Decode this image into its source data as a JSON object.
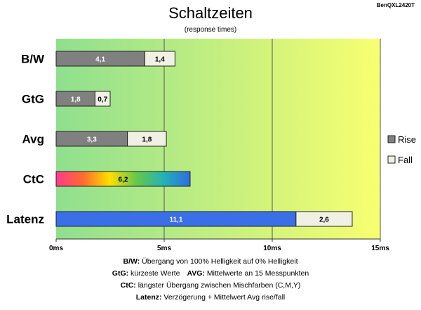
{
  "chart_data": {
    "type": "bar",
    "orientation": "horizontal",
    "stacked": true,
    "title": "Schaltzeiten",
    "subtitle": "(response times)",
    "model_label": "BenQXL2420T",
    "categories": [
      "B/W",
      "GtG",
      "Avg",
      "CtC",
      "Latenz"
    ],
    "series": [
      {
        "name": "Rise",
        "values": [
          4.1,
          1.8,
          3.3,
          null,
          11.1
        ],
        "labels": [
          "4,1",
          "1,8",
          "3,3",
          null,
          "11,1"
        ]
      },
      {
        "name": "Fall",
        "values": [
          1.4,
          0.7,
          1.8,
          null,
          2.6
        ],
        "labels": [
          "1,4",
          "0,7",
          "1,8",
          null,
          "2,6"
        ]
      },
      {
        "name": "",
        "values": [
          null,
          null,
          null,
          6.2,
          null
        ],
        "labels": [
          null,
          null,
          null,
          "6,2",
          null
        ]
      }
    ],
    "xlim": [
      0,
      15
    ],
    "xticks": [
      0,
      5,
      10,
      15
    ],
    "xtick_labels": [
      "0ms",
      "5ms",
      "10ms",
      "15ms"
    ],
    "grid": true,
    "legend_position": "right",
    "background_gradient": [
      "#8fdf8f",
      "#f8ff70"
    ],
    "colors": {
      "rise": "#808080",
      "fall": "#f0f0e4",
      "latency_rise": "#3b6fe8",
      "ctc_gradient": [
        "#ff3a8c",
        "#ff6a30",
        "#ffe000",
        "#66c84a",
        "#22b4b4",
        "#2f6de0"
      ]
    }
  },
  "notes": [
    {
      "term": "B/W:",
      "text": " Übergang von 100% Helligkeit auf 0% Helligkeit"
    },
    {
      "term": "GtG:",
      "text": " kürzeste Werte",
      "term2": "AVG:",
      "text2": " Mittelwerte an 15 Messpunkten"
    },
    {
      "term": "CtC:",
      "text": " längster Übergang zwischen Mischfarben (C,M,Y)"
    },
    {
      "term": "Latenz:",
      "text": " Verzögerung + Mittelwert Avg rise/fall"
    }
  ]
}
